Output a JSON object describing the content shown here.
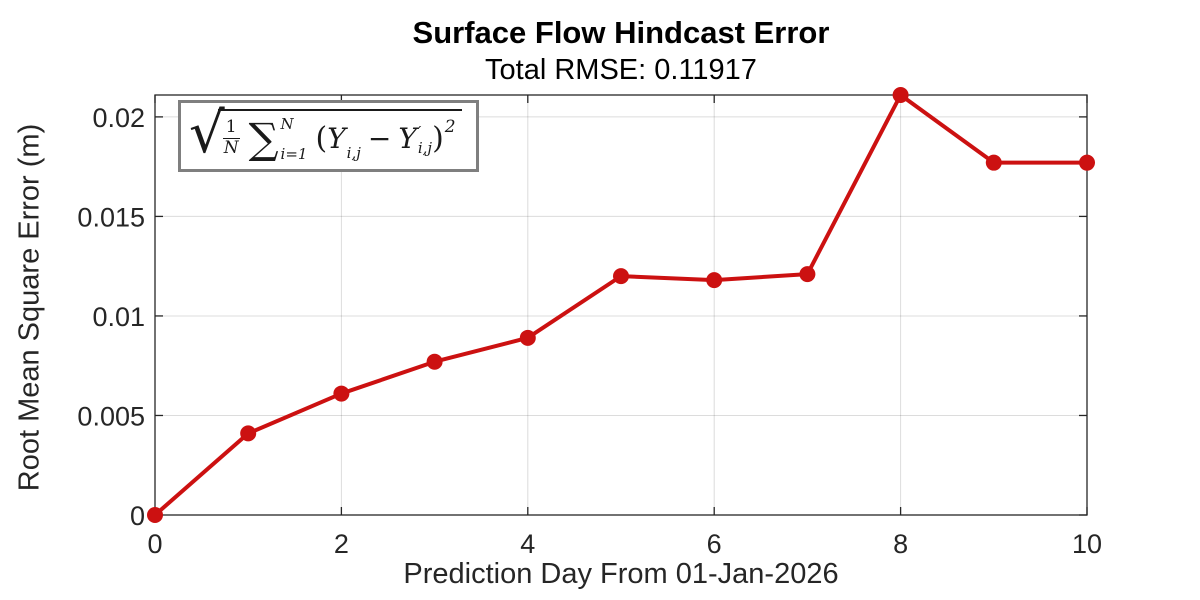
{
  "chart_data": {
    "type": "line",
    "title": "Surface Flow Hindcast Error",
    "subtitle": "Total RMSE: 0.11917",
    "total_rmse": 0.11917,
    "xlabel": "Prediction Day From 01-Jan-2026",
    "ylabel": "Root Mean Square Error (m)",
    "x": [
      0,
      1,
      2,
      3,
      4,
      5,
      6,
      7,
      8,
      9,
      10
    ],
    "y": [
      0.0,
      0.0041,
      0.0061,
      0.0077,
      0.0089,
      0.012,
      0.0118,
      0.0121,
      0.0211,
      0.0177,
      0.0177
    ],
    "xlim": [
      0,
      10
    ],
    "ylim": [
      0,
      0.0211
    ],
    "xticks": [
      0,
      2,
      4,
      6,
      8,
      10
    ],
    "xtick_labels": [
      "0",
      "2",
      "4",
      "6",
      "8",
      "10"
    ],
    "yticks": [
      0,
      0.005,
      0.01,
      0.015,
      0.02
    ],
    "ytick_labels": [
      "0",
      "0.005",
      "0.01",
      "0.015",
      "0.02"
    ],
    "grid": true,
    "legend": "none",
    "line_color": "#cc1111",
    "marker": "filled-circle",
    "colors": {
      "axis": "#262626",
      "grid_rgba": "rgba(38,38,38,0.16)",
      "background": "#ffffff",
      "annotation_border": "#7f7f7f"
    },
    "annotation_formula": {
      "plain_text": "sqrt( (1/N) * sum_{i=1}^{N} (Y_{i,j} - Y'_{i,j})^2 )",
      "radical": "√",
      "frac_num": "1",
      "frac_den": "N",
      "sigma": "∑",
      "sum_upper": "N",
      "sum_lower": "i=1",
      "open_paren": "(",
      "var1": "Y",
      "sub1": "i,j",
      "minus": "−",
      "var2": "Y",
      "prime": "′",
      "sub2": "i,j",
      "close_paren": ")",
      "exponent": "2"
    }
  }
}
